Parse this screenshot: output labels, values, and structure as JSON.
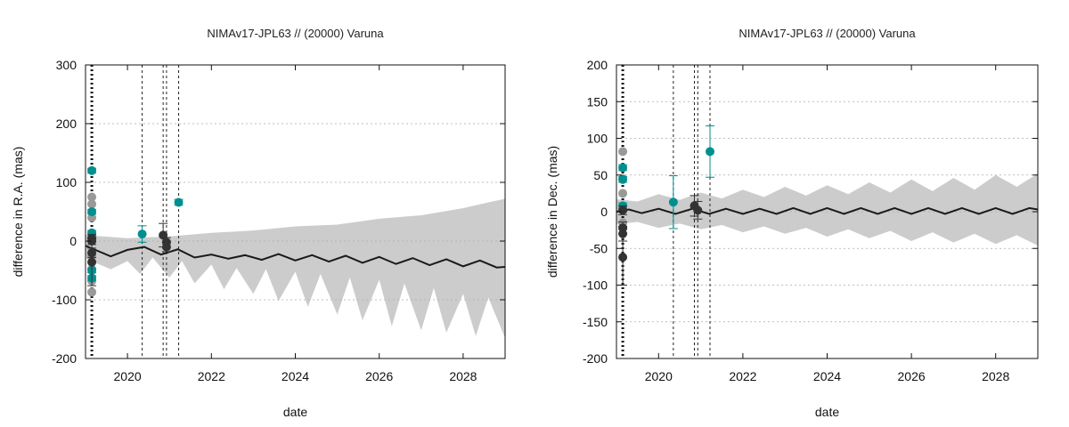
{
  "chart_data": [
    {
      "type": "line",
      "title": "NIMAv17-JPL63 // (20000) Varuna",
      "xlabel": "date",
      "ylabel": "difference in R.A. (mas)",
      "xlim": [
        2019.0,
        2029.0
      ],
      "ylim": [
        -200,
        300
      ],
      "xticks": [
        2020,
        2022,
        2024,
        2026,
        2028
      ],
      "xtick_labels": [
        "2020",
        "2022",
        "2024",
        "2026",
        "2028"
      ],
      "yticks": [
        -200,
        -100,
        0,
        100,
        200,
        300
      ],
      "ytick_labels": [
        "-200",
        "-100",
        "0",
        "100",
        "200",
        "300"
      ],
      "grid": "horizontal dashed",
      "vlines": {
        "thick": [
          2019.15
        ],
        "dashed": [
          2020.35,
          2020.85,
          2020.93,
          2021.22
        ]
      },
      "band_color": "#cccccc",
      "series": [
        {
          "color": "#1a1a1a",
          "style": "line",
          "x": [
            2019.0,
            2019.2,
            2019.6,
            2020.0,
            2020.4,
            2020.8,
            2021.2,
            2021.6,
            2022.0,
            2022.4,
            2022.8,
            2023.2,
            2023.6,
            2024.0,
            2024.4,
            2024.8,
            2025.2,
            2025.6,
            2026.0,
            2026.4,
            2026.8,
            2027.2,
            2027.6,
            2028.0,
            2028.4,
            2028.8,
            2029.0
          ],
          "y": [
            -8,
            -14,
            -26,
            -15,
            -10,
            -23,
            -14,
            -28,
            -23,
            -30,
            -24,
            -32,
            -22,
            -33,
            -24,
            -35,
            -25,
            -37,
            -27,
            -39,
            -29,
            -41,
            -31,
            -43,
            -33,
            -45,
            -44
          ]
        },
        {
          "color": "#cccccc",
          "style": "band-upper",
          "x": [
            2019.0,
            2020.0,
            2021.0,
            2022.0,
            2023.0,
            2024.0,
            2025.0,
            2026.0,
            2027.0,
            2028.0,
            2028.6,
            2029.0
          ],
          "y": [
            10,
            5,
            8,
            14,
            18,
            25,
            28,
            38,
            44,
            56,
            66,
            72
          ]
        },
        {
          "color": "#cccccc",
          "style": "band-lower",
          "x": [
            2019.0,
            2019.6,
            2020.0,
            2020.3,
            2020.6,
            2021.0,
            2021.3,
            2021.6,
            2022.0,
            2022.3,
            2022.6,
            2023.0,
            2023.3,
            2023.6,
            2024.0,
            2024.3,
            2024.6,
            2025.0,
            2025.3,
            2025.6,
            2026.0,
            2026.3,
            2026.6,
            2027.0,
            2027.3,
            2027.6,
            2028.0,
            2028.3,
            2028.6,
            2029.0
          ],
          "y": [
            -30,
            -48,
            -34,
            -56,
            -28,
            -62,
            -34,
            -72,
            -40,
            -82,
            -46,
            -90,
            -48,
            -102,
            -52,
            -112,
            -56,
            -125,
            -62,
            -135,
            -66,
            -145,
            -72,
            -152,
            -80,
            -156,
            -90,
            -162,
            -96,
            -165
          ]
        },
        {
          "color": "#999999",
          "style": "points",
          "x": [
            2019.15,
            2019.15,
            2019.15,
            2019.15,
            2019.15,
            2019.15,
            2019.15
          ],
          "y": [
            75,
            63,
            40,
            -25,
            -48,
            -68,
            -87
          ]
        },
        {
          "color": "#008f8f",
          "style": "points-errorbars",
          "x": [
            2019.15,
            2019.15,
            2019.15,
            2019.15,
            2019.15,
            2020.35,
            2021.22
          ],
          "y": [
            120,
            50,
            14,
            -50,
            -63,
            12,
            66
          ],
          "err": [
            4,
            4,
            4,
            4,
            4,
            14,
            5
          ]
        },
        {
          "color": "#333333",
          "style": "points-errorbars",
          "x": [
            2019.15,
            2019.15,
            2019.15,
            2019.15,
            2020.85,
            2020.93,
            2020.93
          ],
          "y": [
            5,
            0,
            -20,
            -36,
            10,
            -2,
            -10
          ],
          "err": [
            6,
            6,
            8,
            40,
            20,
            8,
            8
          ]
        }
      ]
    },
    {
      "type": "line",
      "title": "NIMAv17-JPL63 // (20000) Varuna",
      "xlabel": "date",
      "ylabel": "difference in Dec. (mas)",
      "xlim": [
        2019.0,
        2029.0
      ],
      "ylim": [
        -200,
        200
      ],
      "xticks": [
        2020,
        2022,
        2024,
        2026,
        2028
      ],
      "xtick_labels": [
        "2020",
        "2022",
        "2024",
        "2026",
        "2028"
      ],
      "yticks": [
        -200,
        -150,
        -100,
        -50,
        0,
        50,
        100,
        150,
        200
      ],
      "ytick_labels": [
        "-200",
        "-150",
        "-100",
        "-50",
        "0",
        "50",
        "100",
        "150",
        "200"
      ],
      "grid": "horizontal dashed",
      "vlines": {
        "thick": [
          2019.15
        ],
        "dashed": [
          2020.35,
          2020.85,
          2020.93,
          2021.22
        ]
      },
      "band_color": "#cccccc",
      "series": [
        {
          "color": "#1a1a1a",
          "style": "line",
          "x": [
            2019.0,
            2019.3,
            2019.6,
            2020.0,
            2020.4,
            2020.8,
            2021.2,
            2021.6,
            2022.0,
            2022.4,
            2022.8,
            2023.2,
            2023.6,
            2024.0,
            2024.4,
            2024.8,
            2025.2,
            2025.6,
            2026.0,
            2026.4,
            2026.8,
            2027.2,
            2027.6,
            2028.0,
            2028.4,
            2028.8,
            2029.0
          ],
          "y": [
            0,
            3,
            -2,
            4,
            -3,
            4,
            -3,
            4,
            -3,
            4,
            -3,
            5,
            -3,
            5,
            -3,
            5,
            -3,
            5,
            -3,
            5,
            -3,
            5,
            -3,
            5,
            -3,
            5,
            3
          ]
        },
        {
          "color": "#cccccc",
          "style": "band-upper",
          "x": [
            2019.0,
            2019.5,
            2020.0,
            2020.5,
            2021.0,
            2021.5,
            2022.0,
            2022.5,
            2023.0,
            2023.5,
            2024.0,
            2024.5,
            2025.0,
            2025.5,
            2026.0,
            2026.5,
            2027.0,
            2027.5,
            2028.0,
            2028.5,
            2029.0
          ],
          "y": [
            17,
            14,
            24,
            16,
            26,
            18,
            30,
            20,
            34,
            22,
            36,
            24,
            40,
            26,
            44,
            28,
            46,
            30,
            50,
            34,
            52
          ]
        },
        {
          "color": "#cccccc",
          "style": "band-lower",
          "x": [
            2019.0,
            2019.5,
            2020.0,
            2020.5,
            2021.0,
            2021.5,
            2022.0,
            2022.5,
            2023.0,
            2023.5,
            2024.0,
            2024.5,
            2025.0,
            2025.5,
            2026.0,
            2026.5,
            2027.0,
            2027.5,
            2028.0,
            2028.5,
            2029.0
          ],
          "y": [
            -17,
            -14,
            -22,
            -16,
            -24,
            -18,
            -28,
            -20,
            -30,
            -22,
            -34,
            -24,
            -36,
            -26,
            -40,
            -28,
            -42,
            -30,
            -44,
            -32,
            -46
          ]
        },
        {
          "color": "#999999",
          "style": "points",
          "x": [
            2019.15,
            2019.15,
            2019.15,
            2019.15,
            2019.15
          ],
          "y": [
            82,
            45,
            25,
            5,
            -15
          ]
        },
        {
          "color": "#008f8f",
          "style": "points-errorbars",
          "x": [
            2019.15,
            2019.15,
            2019.15,
            2020.35,
            2021.22
          ],
          "y": [
            60,
            44,
            8,
            13,
            82
          ],
          "err": [
            4,
            4,
            4,
            36,
            35
          ]
        },
        {
          "color": "#333333",
          "style": "points-errorbars",
          "x": [
            2019.15,
            2019.15,
            2019.15,
            2019.15,
            2020.85,
            2020.93
          ],
          "y": [
            2,
            -22,
            -30,
            -62,
            8,
            2
          ],
          "err": [
            6,
            8,
            10,
            38,
            14,
            12
          ]
        }
      ]
    }
  ]
}
